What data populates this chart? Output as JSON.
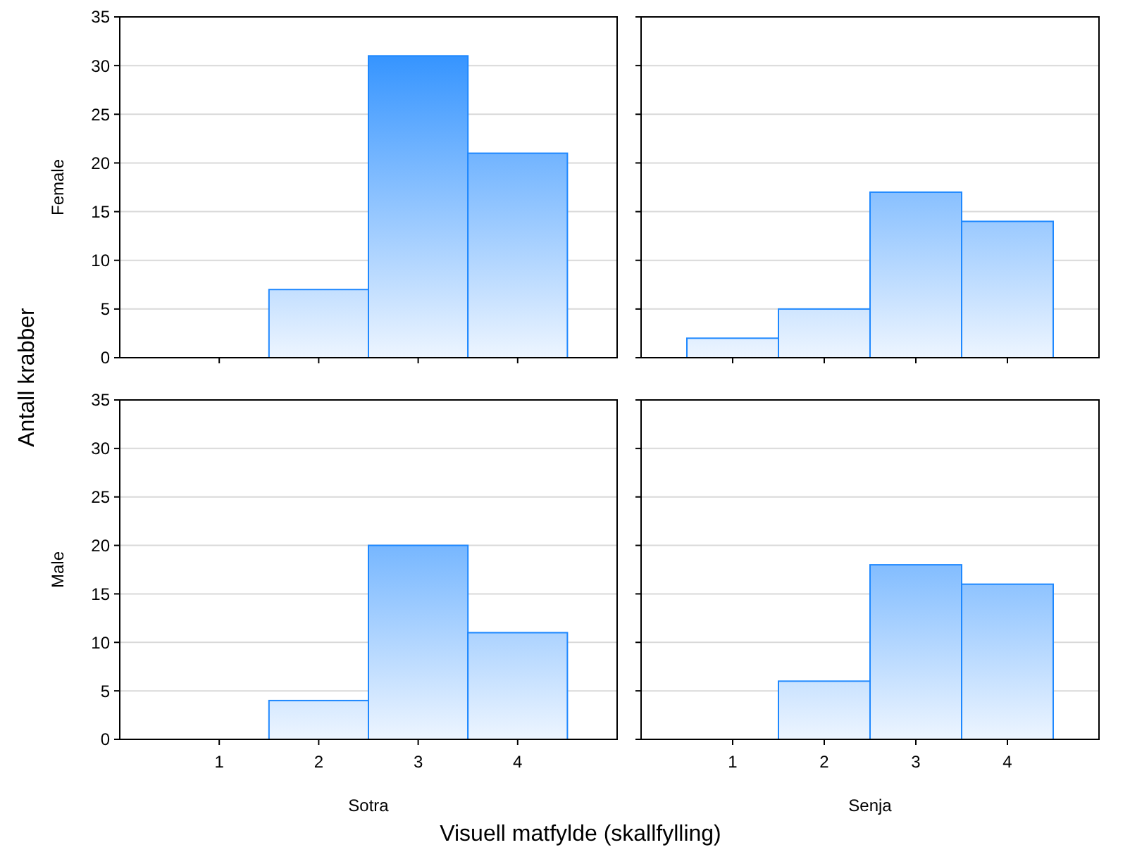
{
  "chart_data": [
    {
      "type": "bar",
      "ylabel": "Female",
      "categories": [
        "1",
        "2",
        "3",
        "4"
      ],
      "values": [
        0,
        7,
        31,
        21
      ],
      "color": "#1e88ff",
      "ylim": [
        0,
        35
      ],
      "yticks": [
        0,
        5,
        10,
        15,
        20,
        25,
        30,
        35
      ],
      "grid": "y",
      "tick_labels": "y",
      "annotations": [
        "Antall krabber"
      ]
    },
    {
      "type": "bar",
      "categories": [
        "1",
        "2",
        "3",
        "4"
      ],
      "values": [
        2,
        5,
        17,
        14
      ],
      "color": "#1e88ff",
      "ylim": [
        0,
        35
      ],
      "yticks": [
        0,
        5,
        10,
        15,
        20,
        25,
        30,
        35
      ],
      "grid": "y",
      "tick_labels": false
    },
    {
      "type": "bar",
      "ylabel": "Male",
      "xlabel": "Sotra",
      "categories": [
        "1",
        "2",
        "3",
        "4"
      ],
      "values": [
        0,
        4,
        20,
        11
      ],
      "color": "#1e88ff",
      "ylim": [
        0,
        35
      ],
      "yticks": [
        0,
        5,
        10,
        15,
        20,
        25,
        30,
        35
      ],
      "grid": "y",
      "annotations": [
        "Visuell matfylde (skallfylling)"
      ]
    },
    {
      "type": "bar",
      "xlabel": "Senja",
      "categories": [
        "1",
        "2",
        "3",
        "4"
      ],
      "values": [
        0,
        6,
        18,
        16
      ],
      "color": "#1e88ff",
      "ylim": [
        0,
        35
      ],
      "yticks": [
        0,
        5,
        10,
        15,
        20,
        25,
        30,
        35
      ],
      "grid": "y",
      "tick_labels": "x"
    }
  ]
}
